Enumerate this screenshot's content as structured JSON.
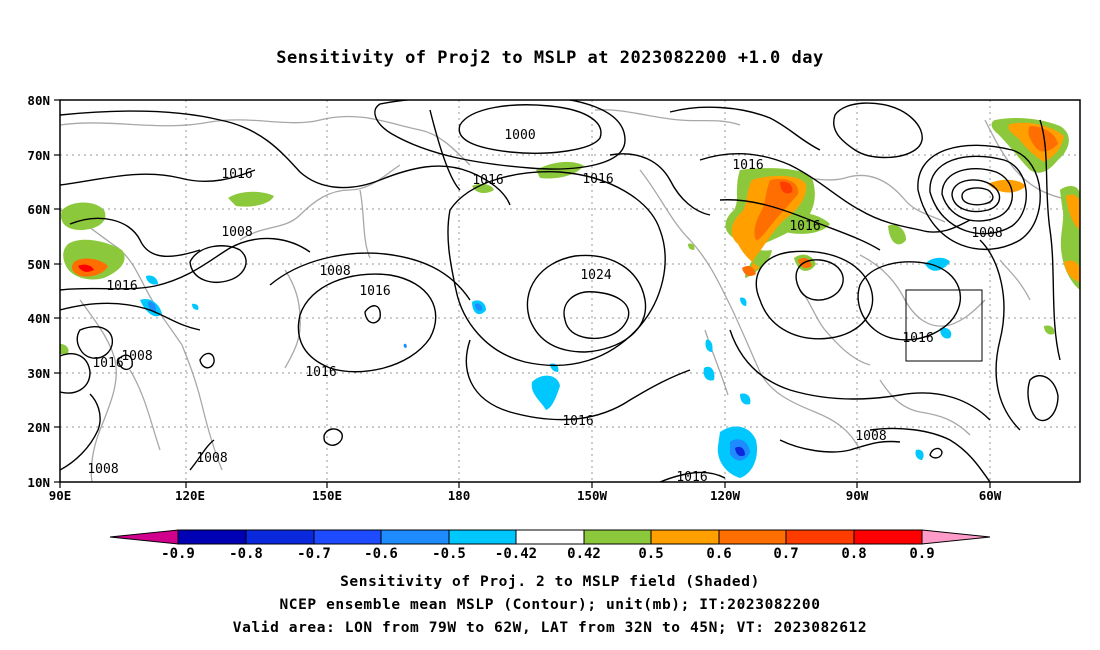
{
  "title": "Sensitivity of Proj2 to MSLP at 2023082200 +1.0 day",
  "lat_labels": [
    "80N",
    "70N",
    "60N",
    "50N",
    "40N",
    "30N",
    "20N",
    "10N"
  ],
  "lon_labels": [
    "90E",
    "120E",
    "150E",
    "180",
    "150W",
    "120W",
    "90W",
    "60W"
  ],
  "contour_labels": [
    "1000",
    "1016",
    "1016",
    "1016",
    "1016",
    "1008",
    "1008",
    "1016",
    "1016",
    "1024",
    "1016",
    "1016",
    "1016",
    "1008",
    "1008",
    "1008",
    "1008",
    "1008",
    "1016",
    "1016",
    "1016"
  ],
  "colorbar": {
    "tick_labels": [
      "-0.9",
      "-0.8",
      "-0.7",
      "-0.6",
      "-0.5",
      "-0.42",
      "0.42",
      "0.5",
      "0.6",
      "0.7",
      "0.8",
      "0.9"
    ],
    "colors": [
      "#d0008c",
      "#0000b4",
      "#0a28dc",
      "#1e4bff",
      "#1e8cff",
      "#00c8ff",
      "#ffffff",
      "#8cc83c",
      "#ffa000",
      "#ff6e00",
      "#ff3c00",
      "#ff0000",
      "#ff9bc8"
    ]
  },
  "captions": [
    "Sensitivity of Proj. 2 to MSLP field (Shaded)",
    "NCEP ensemble mean MSLP (Contour); unit(mb); IT:2023082200",
    "Valid area: LON from 79W to 62W, LAT from 32N to 45N; VT: 2023082612"
  ]
}
